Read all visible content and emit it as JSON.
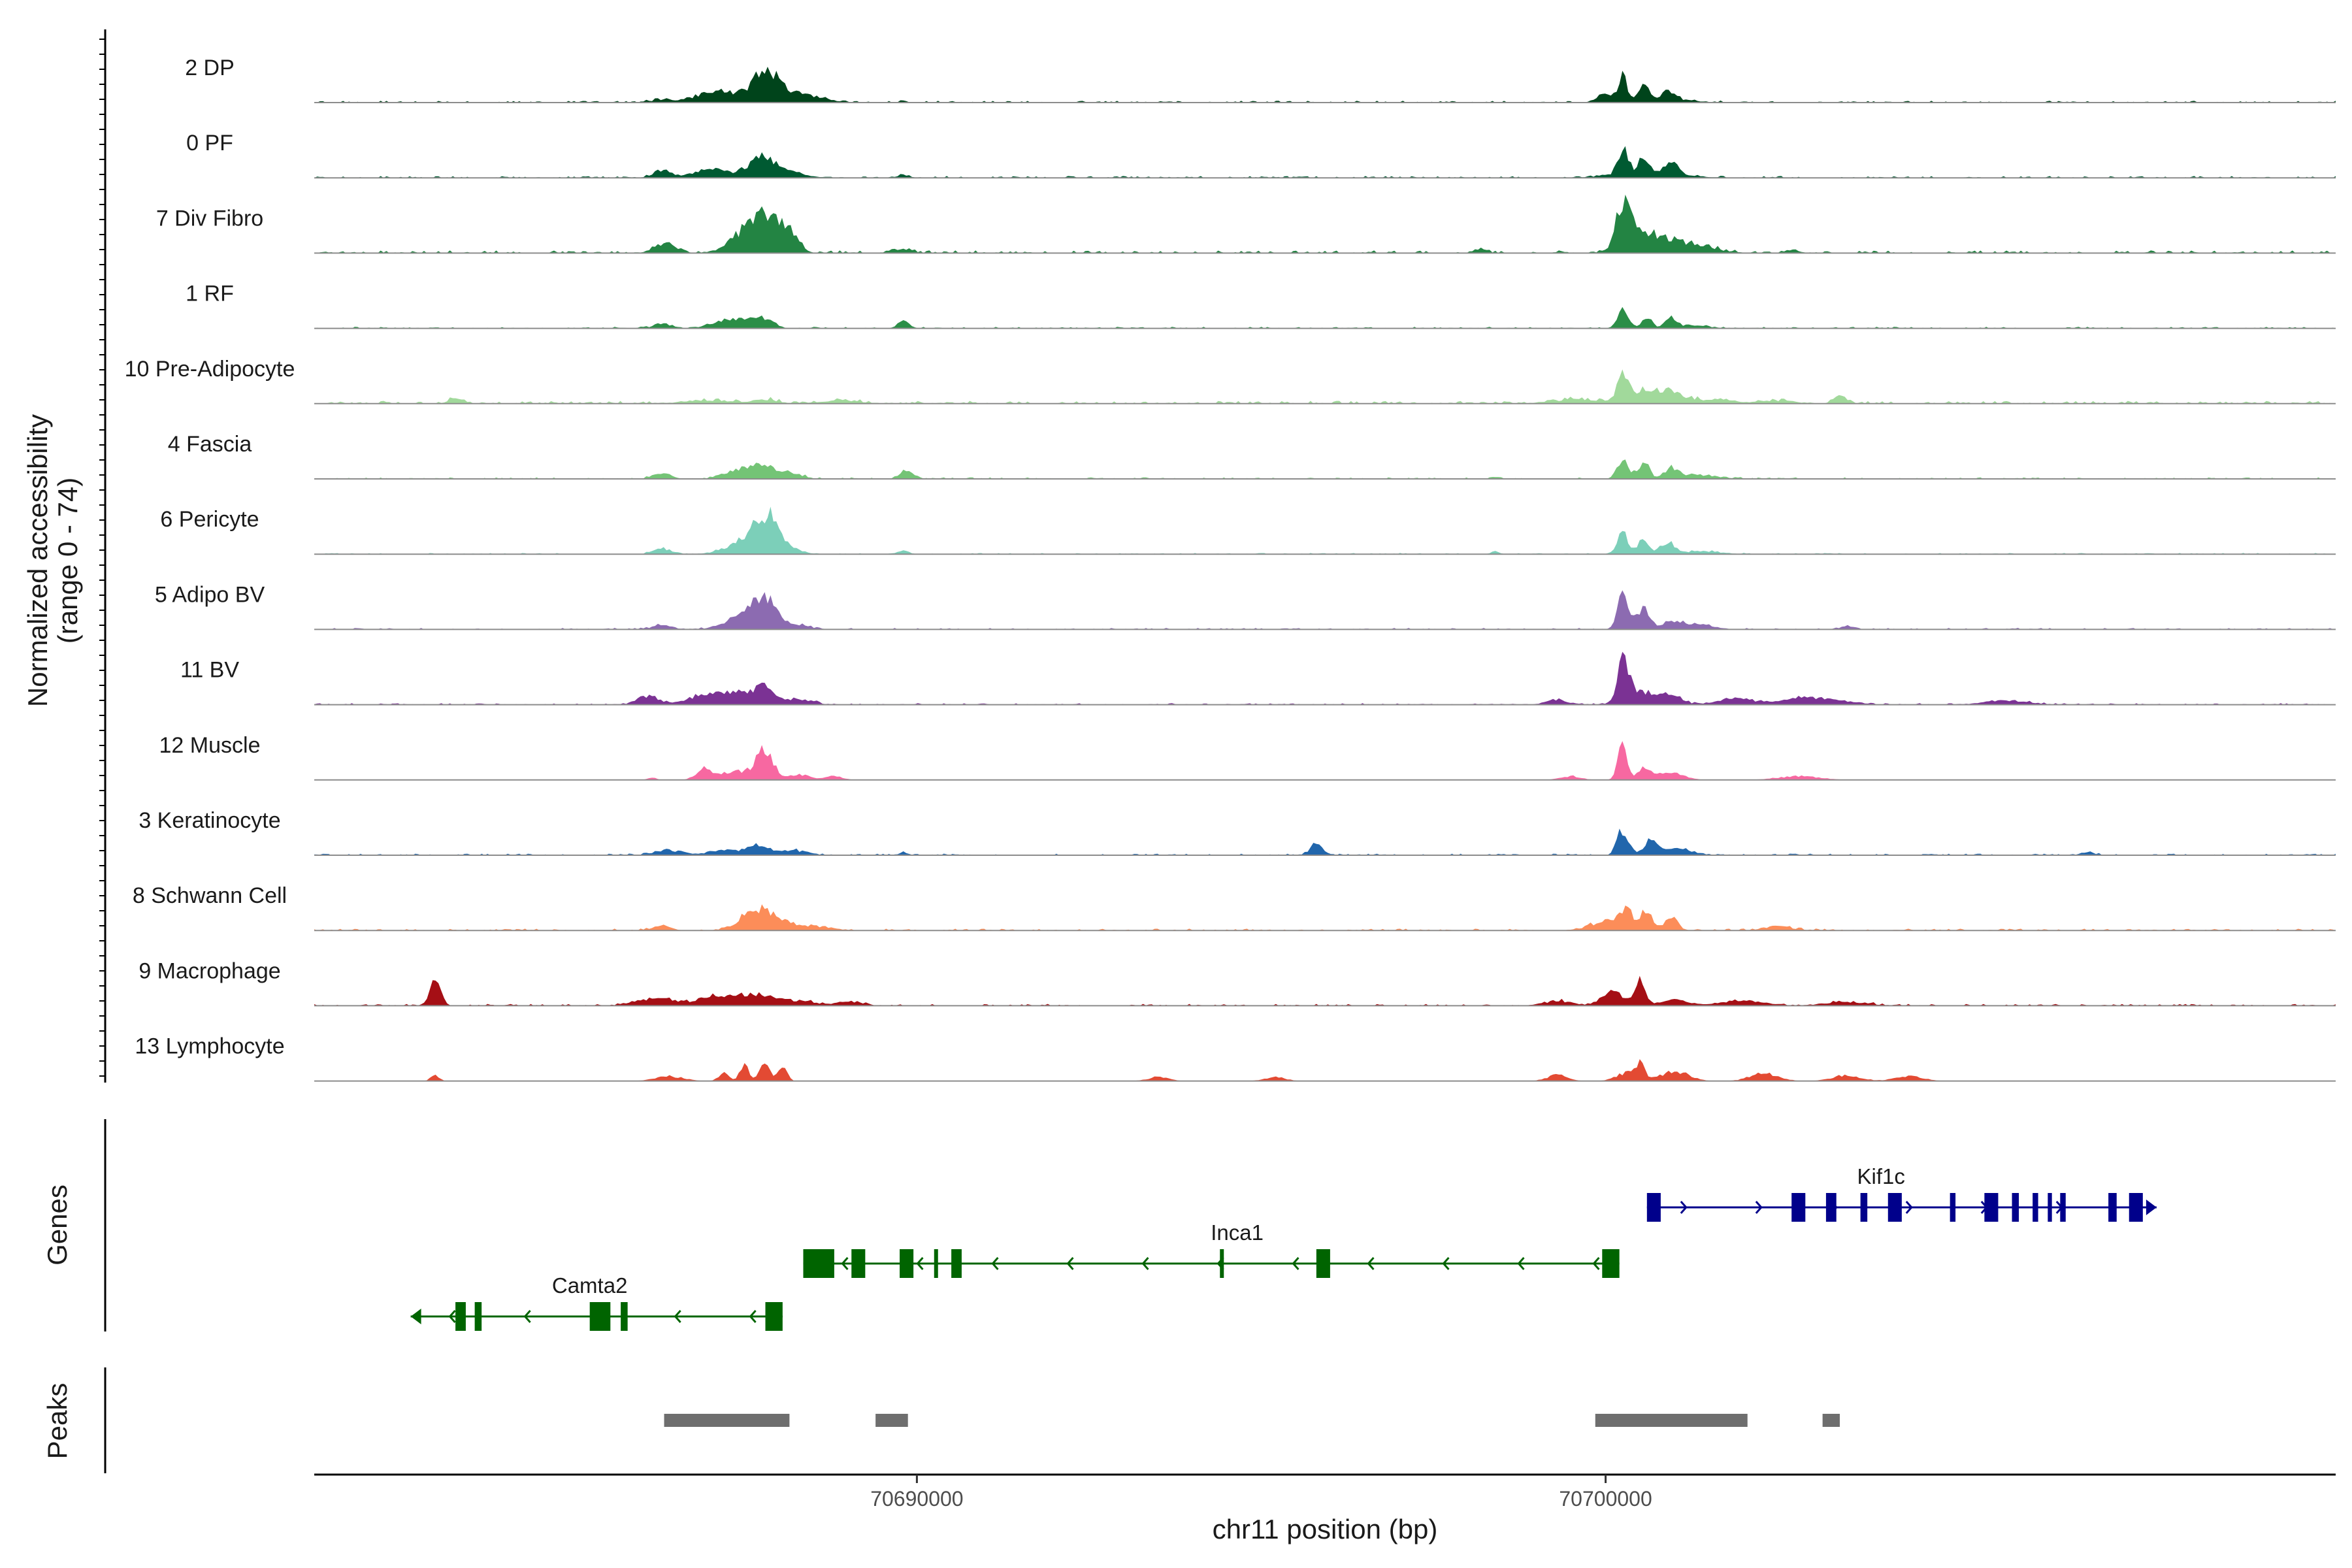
{
  "chart_data": {
    "type": "area",
    "description_label": "Normalized accessibility",
    "ylabel_line1": "Normalized accessibility",
    "ylabel_line2": "(range 0 - 74)",
    "y_range": [
      0,
      74
    ],
    "xlabel": "chr11 position (bp)",
    "x_range": [
      70681250,
      70710600
    ],
    "x_ticks": [
      {
        "value": 70690000,
        "label": "70690000"
      },
      {
        "value": 70700000,
        "label": "70700000"
      }
    ],
    "tracks": [
      {
        "name": "2 DP",
        "color": "#00441b",
        "noise": 1.2,
        "peaks": [
          [
            70686300,
            140,
            3
          ],
          [
            70687100,
            300,
            11
          ],
          [
            70687800,
            150,
            27
          ],
          [
            70688000,
            350,
            11
          ],
          [
            70688500,
            200,
            3
          ],
          [
            70689800,
            60,
            1
          ],
          [
            70700000,
            120,
            8
          ],
          [
            70700250,
            60,
            26
          ],
          [
            70700550,
            80,
            16
          ],
          [
            70700900,
            100,
            9
          ],
          [
            70701000,
            300,
            3
          ]
        ]
      },
      {
        "name": "0 PF",
        "color": "#005a32",
        "noise": 1.2,
        "peaks": [
          [
            70686300,
            120,
            7
          ],
          [
            70687000,
            250,
            8
          ],
          [
            70687650,
            200,
            10
          ],
          [
            70687800,
            130,
            14
          ],
          [
            70688100,
            250,
            6
          ],
          [
            70689800,
            80,
            3
          ],
          [
            70700250,
            70,
            24
          ],
          [
            70700550,
            70,
            15
          ],
          [
            70700950,
            90,
            13
          ],
          [
            70700600,
            450,
            6
          ]
        ]
      },
      {
        "name": "7 Div Fibro",
        "color": "#238443",
        "noise": 1.8,
        "peaks": [
          [
            70686350,
            150,
            10
          ],
          [
            70687600,
            250,
            26
          ],
          [
            70687900,
            200,
            28
          ],
          [
            70688200,
            100,
            12
          ],
          [
            70689700,
            80,
            4
          ],
          [
            70689900,
            60,
            4
          ],
          [
            70698200,
            80,
            4
          ],
          [
            70700250,
            90,
            42
          ],
          [
            70700500,
            250,
            20
          ],
          [
            70701000,
            300,
            10
          ],
          [
            70701500,
            200,
            4
          ],
          [
            70702700,
            100,
            3
          ]
        ]
      },
      {
        "name": "1 RF",
        "color": "#2b8e47",
        "noise": 1.0,
        "peaks": [
          [
            70686300,
            120,
            5
          ],
          [
            70687150,
            180,
            6
          ],
          [
            70687500,
            200,
            8
          ],
          [
            70687800,
            120,
            8
          ],
          [
            70689800,
            80,
            7
          ],
          [
            70700250,
            80,
            19
          ],
          [
            70700600,
            70,
            12
          ],
          [
            70700950,
            80,
            10
          ],
          [
            70701300,
            200,
            3
          ]
        ]
      },
      {
        "name": "10 Pre-Adipocyte",
        "color": "#a1d99b",
        "noise": 1.8,
        "peaks": [
          [
            70683300,
            100,
            5
          ],
          [
            70687000,
            400,
            3
          ],
          [
            70687800,
            150,
            4
          ],
          [
            70688900,
            300,
            3
          ],
          [
            70699500,
            300,
            4
          ],
          [
            70700250,
            70,
            26
          ],
          [
            70700500,
            250,
            12
          ],
          [
            70700950,
            200,
            11
          ],
          [
            70701600,
            250,
            4
          ],
          [
            70702500,
            250,
            3
          ],
          [
            70703400,
            80,
            10
          ]
        ]
      },
      {
        "name": "4 Fascia",
        "color": "#74c476",
        "noise": 1.0,
        "peaks": [
          [
            70686300,
            120,
            6
          ],
          [
            70687400,
            200,
            9
          ],
          [
            70687800,
            180,
            13
          ],
          [
            70688200,
            150,
            5
          ],
          [
            70689850,
            100,
            9
          ],
          [
            70698400,
            60,
            2
          ],
          [
            70700250,
            80,
            21
          ],
          [
            70700550,
            80,
            16
          ],
          [
            70700950,
            90,
            10
          ],
          [
            70701300,
            300,
            4
          ]
        ]
      },
      {
        "name": "6 Pericyte",
        "color": "#7ccfb9",
        "noise": 0.8,
        "peaks": [
          [
            70686300,
            120,
            6
          ],
          [
            70687500,
            250,
            14
          ],
          [
            70687800,
            150,
            28
          ],
          [
            70688000,
            200,
            12
          ],
          [
            70689800,
            80,
            3
          ],
          [
            70698400,
            60,
            2
          ],
          [
            70700250,
            80,
            20
          ],
          [
            70700550,
            80,
            14
          ],
          [
            70700900,
            100,
            12
          ],
          [
            70701400,
            250,
            3
          ]
        ]
      },
      {
        "name": "5 Adipo BV",
        "color": "#8c6bb1",
        "noise": 1.0,
        "peaks": [
          [
            70686300,
            120,
            5
          ],
          [
            70687500,
            250,
            15
          ],
          [
            70687800,
            150,
            27
          ],
          [
            70688200,
            200,
            5
          ],
          [
            70700250,
            80,
            33
          ],
          [
            70700550,
            90,
            22
          ],
          [
            70701000,
            150,
            8
          ],
          [
            70701400,
            200,
            4
          ],
          [
            70703500,
            80,
            3
          ]
        ]
      },
      {
        "name": "11 BV",
        "color": "#7b3294",
        "noise": 1.0,
        "peaks": [
          [
            70686100,
            150,
            9
          ],
          [
            70686900,
            250,
            8
          ],
          [
            70687400,
            300,
            10
          ],
          [
            70687800,
            150,
            14
          ],
          [
            70688300,
            200,
            5
          ],
          [
            70699300,
            150,
            5
          ],
          [
            70700250,
            80,
            38
          ],
          [
            70700500,
            200,
            14
          ],
          [
            70700950,
            150,
            10
          ],
          [
            70701900,
            250,
            7
          ],
          [
            70702800,
            250,
            6
          ],
          [
            70703300,
            250,
            5
          ],
          [
            70705800,
            300,
            4
          ]
        ]
      },
      {
        "name": "12 Muscle",
        "color": "#f768a1",
        "noise": 0.0,
        "peaks": [
          [
            70686150,
            60,
            3
          ],
          [
            70686900,
            100,
            11
          ],
          [
            70687400,
            300,
            9
          ],
          [
            70687800,
            120,
            28
          ],
          [
            70688300,
            150,
            5
          ],
          [
            70688800,
            120,
            4
          ],
          [
            70699500,
            150,
            4
          ],
          [
            70700250,
            70,
            34
          ],
          [
            70700550,
            80,
            10
          ],
          [
            70700900,
            200,
            9
          ],
          [
            70702800,
            300,
            4
          ]
        ]
      },
      {
        "name": "3 Keratinocyte",
        "color": "#2166ac",
        "noise": 1.0,
        "peaks": [
          [
            70686400,
            200,
            5
          ],
          [
            70687200,
            200,
            6
          ],
          [
            70687700,
            150,
            10
          ],
          [
            70688200,
            200,
            5
          ],
          [
            70689800,
            60,
            3
          ],
          [
            70695800,
            90,
            11
          ],
          [
            70700250,
            80,
            26
          ],
          [
            70700650,
            90,
            14
          ],
          [
            70701000,
            250,
            6
          ],
          [
            70707000,
            100,
            3
          ]
        ]
      },
      {
        "name": "8 Schwann Cell",
        "color": "#fc8d59",
        "noise": 1.2,
        "peaks": [
          [
            70686300,
            120,
            5
          ],
          [
            70687600,
            200,
            16
          ],
          [
            70687900,
            200,
            13
          ],
          [
            70688400,
            300,
            4
          ],
          [
            70700050,
            250,
            10
          ],
          [
            70700300,
            90,
            17
          ],
          [
            70700600,
            80,
            19
          ],
          [
            70700950,
            90,
            14
          ],
          [
            70702500,
            200,
            4
          ]
        ]
      },
      {
        "name": "9 Macrophage",
        "color": "#a50f15",
        "noise": 1.2,
        "peaks": [
          [
            70683000,
            80,
            25
          ],
          [
            70686200,
            250,
            8
          ],
          [
            70687100,
            300,
            9
          ],
          [
            70687700,
            250,
            10
          ],
          [
            70688300,
            200,
            5
          ],
          [
            70689000,
            200,
            4
          ],
          [
            70699300,
            200,
            5
          ],
          [
            70700100,
            150,
            16
          ],
          [
            70700500,
            80,
            25
          ],
          [
            70701000,
            200,
            6
          ],
          [
            70702000,
            300,
            5
          ],
          [
            70703500,
            300,
            4
          ]
        ]
      },
      {
        "name": "13 Lymphocyte",
        "color": "#e34a33",
        "noise": 0.0,
        "peaks": [
          [
            70683000,
            60,
            6
          ],
          [
            70686400,
            200,
            5
          ],
          [
            70687200,
            80,
            8
          ],
          [
            70687500,
            60,
            20
          ],
          [
            70687800,
            70,
            22
          ],
          [
            70688050,
            60,
            17
          ],
          [
            70693500,
            150,
            4
          ],
          [
            70695200,
            150,
            4
          ],
          [
            70699300,
            150,
            6
          ],
          [
            70700300,
            150,
            8
          ],
          [
            70700500,
            70,
            16
          ],
          [
            70701000,
            200,
            10
          ],
          [
            70702300,
            200,
            8
          ],
          [
            70703500,
            200,
            6
          ],
          [
            70704400,
            200,
            5
          ]
        ]
      }
    ],
    "genes": [
      {
        "name": "Kif1c",
        "strand": "+",
        "color": "#00008b",
        "start": 70700600,
        "end": 70708000,
        "label_pos": 70704000,
        "exons": [
          [
            70700600,
            70700800
          ],
          [
            70702700,
            70702900
          ],
          [
            70703200,
            70703350
          ],
          [
            70703700,
            70703800
          ],
          [
            70704100,
            70704300
          ],
          [
            70705000,
            70705080
          ],
          [
            70705500,
            70705700
          ],
          [
            70705900,
            70706000
          ],
          [
            70706200,
            70706280
          ],
          [
            70706420,
            70706480
          ],
          [
            70706600,
            70706680
          ],
          [
            70707300,
            70707420
          ],
          [
            70707600,
            70707800
          ]
        ]
      },
      {
        "name": "Inca1",
        "strand": "-",
        "color": "#006400",
        "start": 70688350,
        "end": 70700200,
        "label_pos": 70694650,
        "exons": [
          [
            70688350,
            70688800
          ],
          [
            70689050,
            70689250
          ],
          [
            70689750,
            70689950
          ],
          [
            70690250,
            70690300
          ],
          [
            70690500,
            70690650
          ],
          [
            70694400,
            70694450
          ],
          [
            70695800,
            70696000
          ],
          [
            70699950,
            70700200
          ]
        ]
      },
      {
        "name": "Camta2",
        "strand": "-",
        "color": "#006400",
        "start": 70682650,
        "end": 70688050,
        "label_pos": 70685250,
        "exons": [
          [
            70683300,
            70683450
          ],
          [
            70683580,
            70683680
          ],
          [
            70685250,
            70685550
          ],
          [
            70685700,
            70685800
          ],
          [
            70687800,
            70688050
          ]
        ]
      }
    ],
    "peaks_regions": [
      [
        70686330,
        70688150
      ],
      [
        70689400,
        70689870
      ],
      [
        70699850,
        70702060
      ],
      [
        70703150,
        70703400
      ]
    ],
    "panel_labels": {
      "genes": "Genes",
      "peaks": "Peaks"
    }
  }
}
